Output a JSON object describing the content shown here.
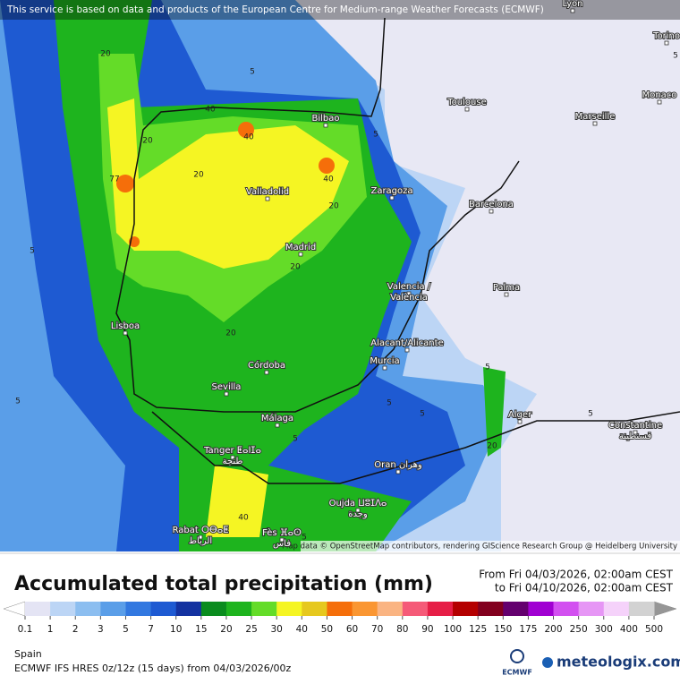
{
  "notice": "This service is based on data and products of the European Centre for Medium-range Weather Forecasts (ECMWF)",
  "map": {
    "cities": [
      {
        "lines": [
          "Lyon"
        ]
      },
      {
        "lines": [
          "Torino"
        ]
      },
      {
        "lines": [
          "Monaco"
        ]
      },
      {
        "lines": [
          "Toulouse"
        ]
      },
      {
        "lines": [
          "Marseille"
        ]
      },
      {
        "lines": [
          "Bilbao"
        ]
      },
      {
        "lines": [
          "Zaragoza"
        ]
      },
      {
        "lines": [
          "Barcelona"
        ]
      },
      {
        "lines": [
          "Valladolid"
        ]
      },
      {
        "lines": [
          "Madrid"
        ]
      },
      {
        "lines": [
          "Valencia /",
          "València"
        ]
      },
      {
        "lines": [
          "Palma"
        ]
      },
      {
        "lines": [
          "Lisboa"
        ]
      },
      {
        "lines": [
          "Alacant/Alicante"
        ]
      },
      {
        "lines": [
          "Murcia"
        ]
      },
      {
        "lines": [
          "Córdoba"
        ]
      },
      {
        "lines": [
          "Sevilla"
        ]
      },
      {
        "lines": [
          "Alger"
        ]
      },
      {
        "lines": [
          "Constantine",
          "قسنطينة"
        ]
      },
      {
        "lines": [
          "Málaga"
        ]
      },
      {
        "lines": [
          "Tanger ⵟⴰⵏⵊⴰ",
          "طنجة"
        ]
      },
      {
        "lines": [
          "Oran وهران"
        ]
      },
      {
        "lines": [
          "Oujda ⵡⵓⵊⴷⴰ",
          "وجدة"
        ]
      },
      {
        "lines": [
          "Rabat ⵔⴱⴰⵟ",
          "الرباط"
        ]
      },
      {
        "lines": [
          "Fès ⴼⴰⵙ",
          "فاس"
        ]
      }
    ],
    "contour_labels": [
      20,
      77,
      40,
      20,
      40,
      40,
      20,
      20,
      20,
      5,
      5,
      5,
      5,
      5,
      5,
      5,
      5,
      20,
      20,
      40,
      5,
      5,
      5
    ],
    "attribution": "Map data © OpenStreetMap contributors, rendering GIScience Research Group @ Heidelberg University"
  },
  "title": "Accumulated total precipitation (mm)",
  "period_from": "From Fri 04/03/2026, 02:00am CEST",
  "period_to": "to Fri 04/10/2026, 02:00am CEST",
  "legend": {
    "levels": [
      0.1,
      1,
      2,
      3,
      5,
      7,
      10,
      15,
      20,
      25,
      30,
      40,
      50,
      60,
      70,
      80,
      90,
      100,
      125,
      150,
      175,
      200,
      250,
      300,
      400,
      500
    ],
    "under_color": "#ffffff",
    "over_color": "#969696",
    "colors": [
      "#e4e4f4",
      "#bcd5f5",
      "#8cbef0",
      "#5a9ee8",
      "#3278e0",
      "#1e5ad2",
      "#1432a0",
      "#0a8c1e",
      "#1eb41e",
      "#64dc28",
      "#f5f523",
      "#e6c81e",
      "#f56e0a",
      "#fa9632",
      "#fab482",
      "#f55a78",
      "#e61e46",
      "#b40000",
      "#82001e",
      "#64006e",
      "#a000d2",
      "#d250f0",
      "#e696f5",
      "#f5d2fa",
      "#d2d2d2"
    ]
  },
  "region": "Spain",
  "model": "ECMWF IFS HRES 0z/12z (15 days) from  04/03/2026/00z",
  "ecmwf_logo": "ECMWF",
  "brand": "meteologix.com"
}
